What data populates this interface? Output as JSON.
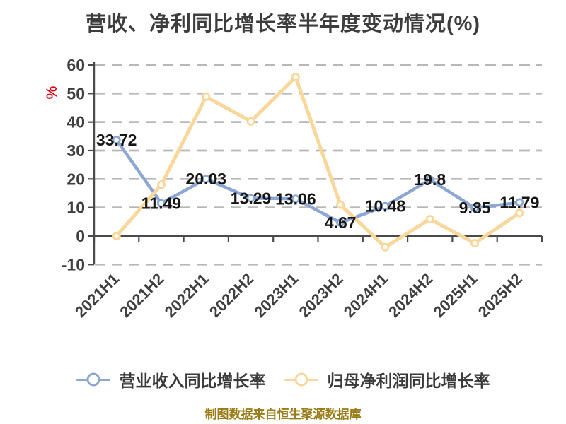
{
  "title": "营收、净利同比增长率半年度变动情况(%)",
  "y_axis_unit": "%",
  "footer": "制图数据来自恒生聚源数据库",
  "colors": {
    "revenue_line": "#8da7d5",
    "net_profit_line": "#f9d79b",
    "grid": "#b8b8b8",
    "axis": "#4a4a4a",
    "tick_label": "#3f3f3f",
    "data_label": "#161616",
    "unit_label": "#e60012",
    "title": "#3d3d3d",
    "footer": "#9a7b16"
  },
  "legend": [
    {
      "label": "营业收入同比增长率",
      "color": "#8da7d5"
    },
    {
      "label": "归母净利润同比增长率",
      "color": "#f9d79b"
    }
  ],
  "chart_data": {
    "type": "line",
    "title": "营收、净利同比增长率半年度变动情况(%)",
    "xlabel": "",
    "ylabel": "%",
    "categories": [
      "2021H1",
      "2021H2",
      "2022H1",
      "2022H2",
      "2023H1",
      "2023H2",
      "2024H1",
      "2024H2",
      "2025H1",
      "2025H2"
    ],
    "series": [
      {
        "name": "营业收入同比增长率",
        "color": "#8da7d5",
        "values": [
          33.72,
          11.49,
          20.03,
          13.29,
          13.06,
          4.67,
          10.48,
          19.8,
          9.85,
          11.79
        ],
        "labels_shown": true
      },
      {
        "name": "归母净利润同比增长率",
        "color": "#f9d79b",
        "values": [
          0,
          18,
          48.9,
          40.2,
          55.8,
          11,
          -3.9,
          5.9,
          -2.5,
          8.1
        ],
        "labels_shown": false
      }
    ],
    "ylim": [
      -10,
      60
    ],
    "y_ticks": [
      60,
      50,
      40,
      30,
      20,
      10,
      0,
      -10
    ],
    "grid": "dashed horizontal",
    "legend_position": "bottom"
  }
}
